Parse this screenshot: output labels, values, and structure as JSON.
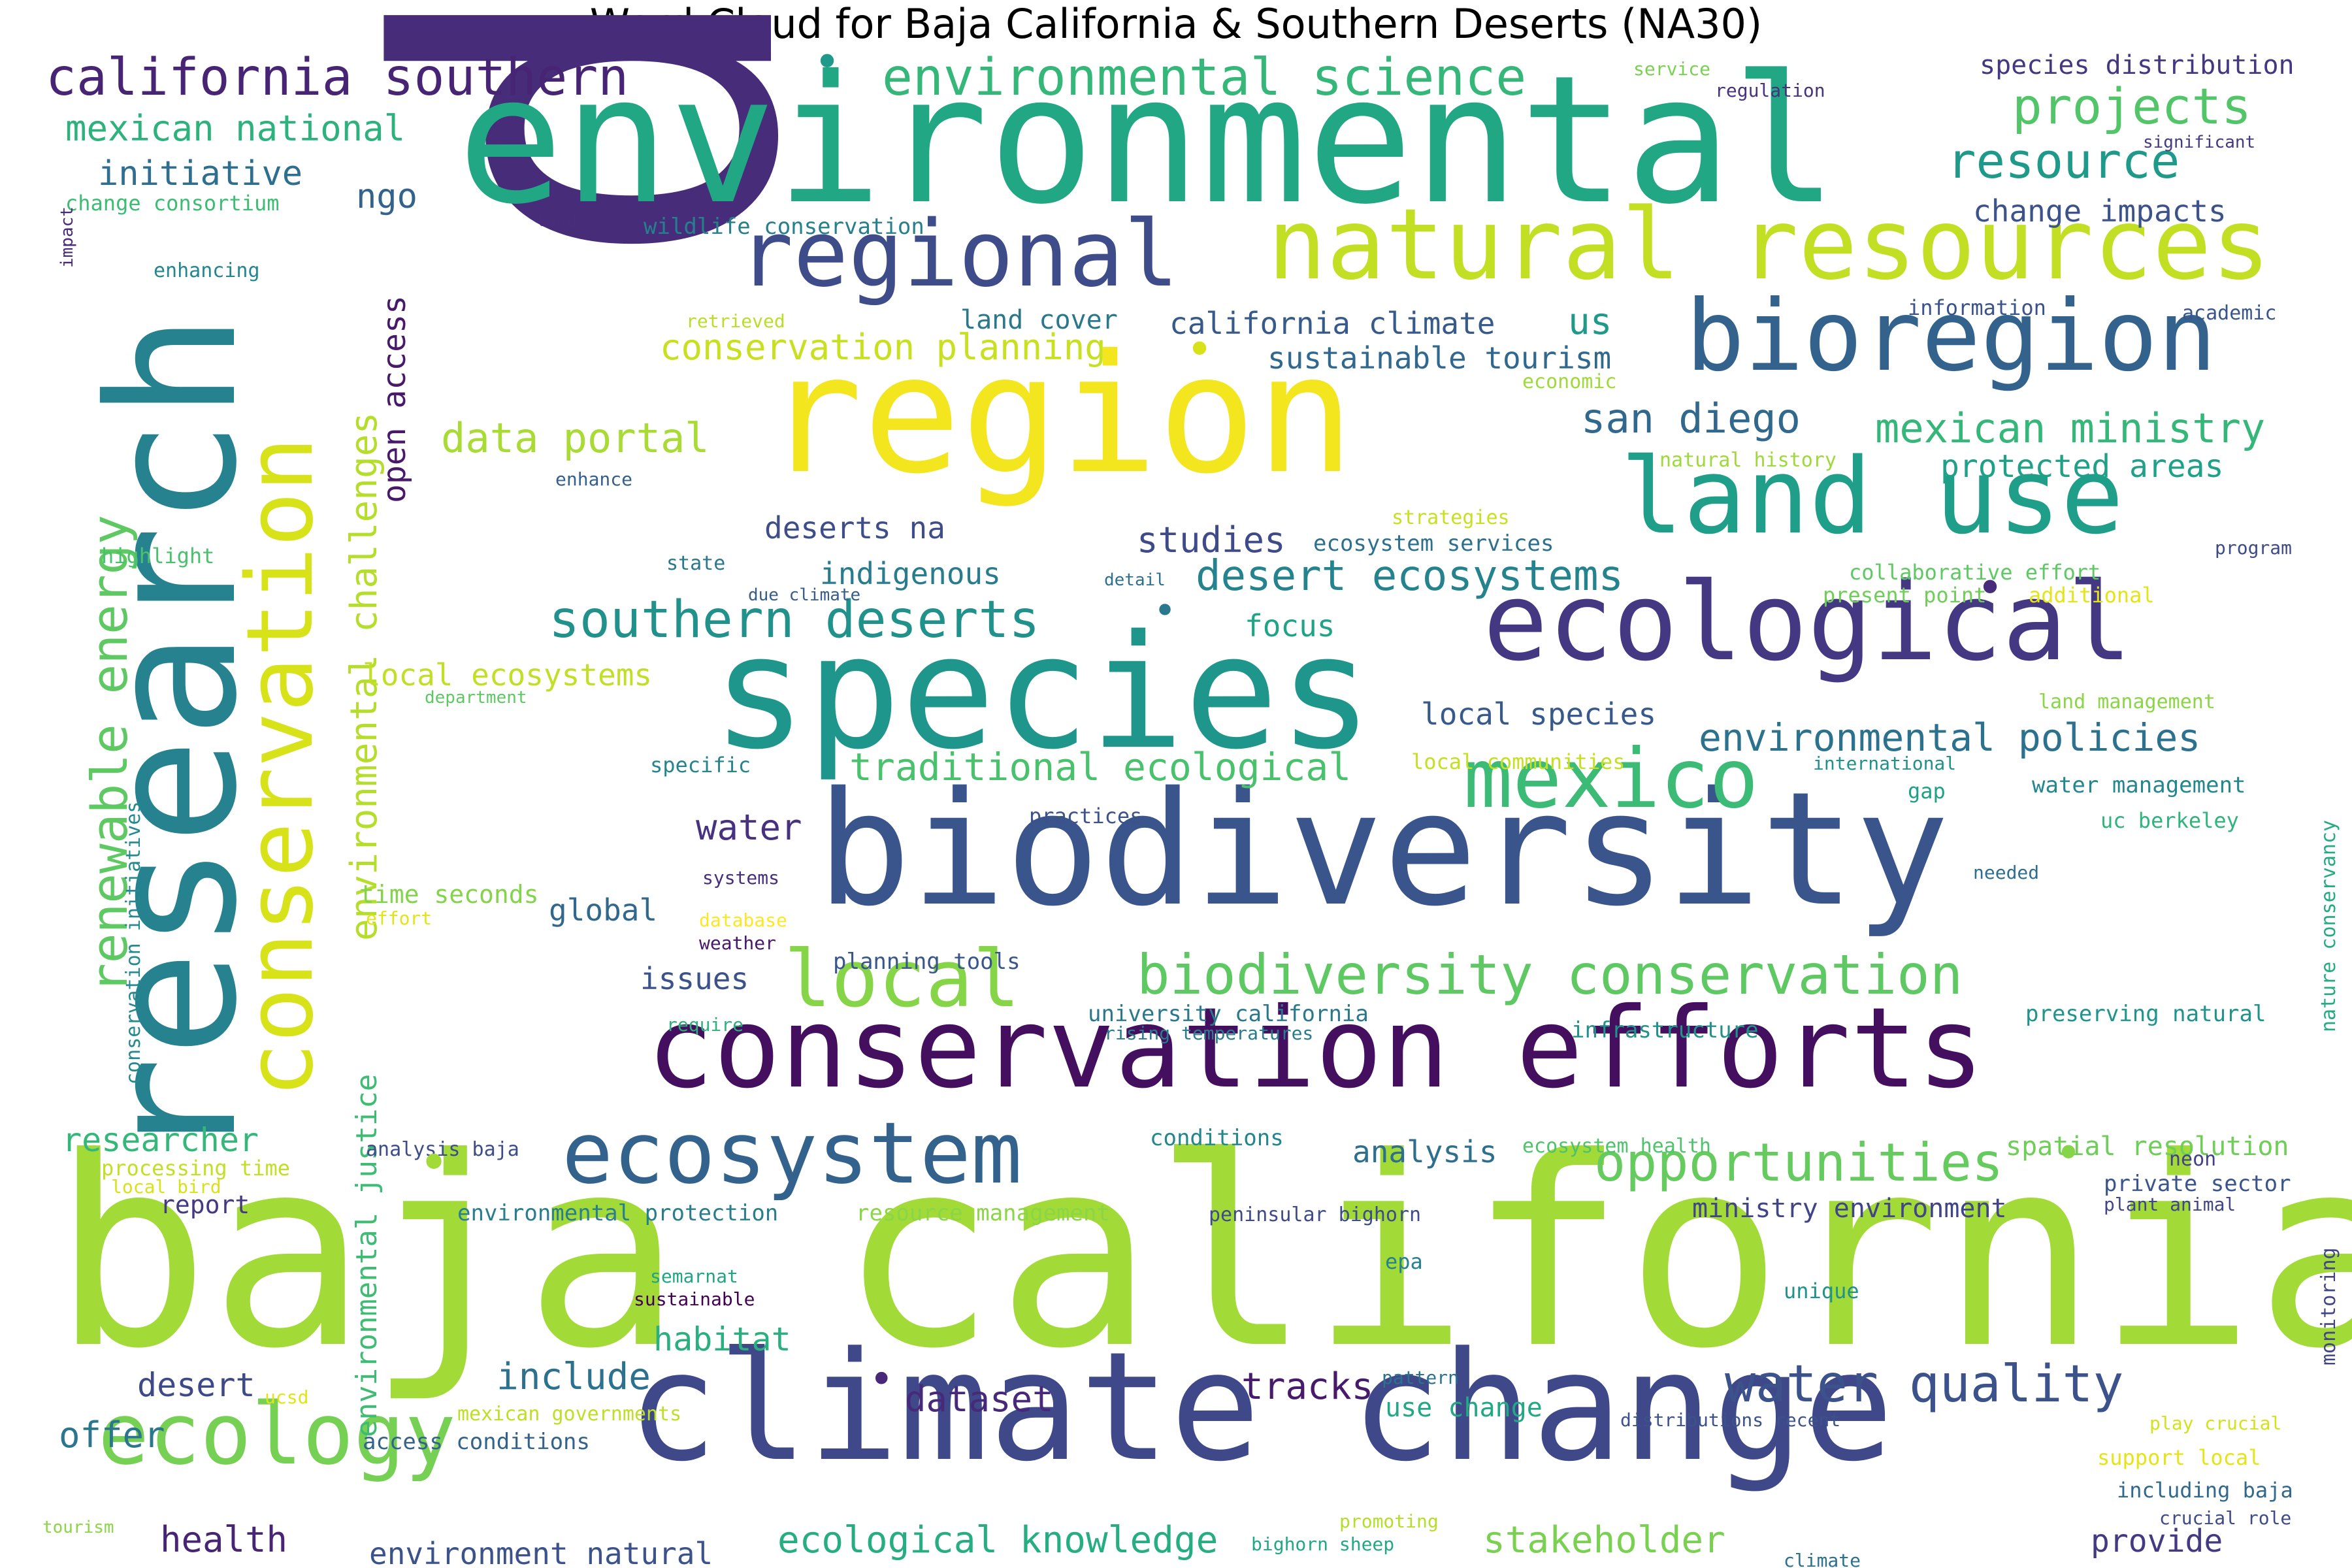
{
  "title": "Word Cloud for Baja California & Southern Deserts (NA30)",
  "words": [
    {
      "text": "data",
      "color": "#472c7a"
    },
    {
      "text": "baja california",
      "color": "#a2da37"
    },
    {
      "text": "environmental",
      "color": "#22a784"
    },
    {
      "text": "region",
      "color": "#f3e51e"
    },
    {
      "text": "species",
      "color": "#1f968b"
    },
    {
      "text": "biodiversity",
      "color": "#3a548c"
    },
    {
      "text": "research",
      "color": "#26828e"
    },
    {
      "text": "climate change",
      "color": "#3f4889"
    },
    {
      "text": "conservation efforts",
      "color": "#440f5e"
    },
    {
      "text": "ecological",
      "color": "#453882"
    },
    {
      "text": "natural resources",
      "color": "#c2df23"
    },
    {
      "text": "bioregion",
      "color": "#33638d"
    },
    {
      "text": "land use",
      "color": "#1f9e89"
    },
    {
      "text": "regional",
      "color": "#3e4c8a"
    },
    {
      "text": "conservation",
      "color": "#d8e219"
    },
    {
      "text": "ecosystem",
      "color": "#33638d"
    },
    {
      "text": "mexico",
      "color": "#3bbb75"
    },
    {
      "text": "ecology",
      "color": "#75d054"
    },
    {
      "text": "local",
      "color": "#86d549"
    },
    {
      "text": "california southern",
      "color": "#482475"
    },
    {
      "text": "environmental science",
      "color": "#35b779"
    },
    {
      "text": "biodiversity conservation",
      "color": "#5ec962"
    },
    {
      "text": "opportunities",
      "color": "#65cb5e"
    },
    {
      "text": "water quality",
      "color": "#3b528b"
    },
    {
      "text": "southern deserts",
      "color": "#21918c"
    },
    {
      "text": "renewable energy",
      "color": "#5ec962"
    },
    {
      "text": "environmental challenges",
      "color": "#b5de2b"
    },
    {
      "text": "projects",
      "color": "#52c569"
    },
    {
      "text": "resource",
      "color": "#1f9a8a"
    },
    {
      "text": "desert ecosystems",
      "color": "#25838e"
    },
    {
      "text": "mexican ministry",
      "color": "#35b779"
    },
    {
      "text": "environmental policies",
      "color": "#2c728e"
    },
    {
      "text": "data portal",
      "color": "#a8db34"
    },
    {
      "text": "san diego",
      "color": "#31688e"
    },
    {
      "text": "traditional ecological",
      "color": "#4ac16d"
    },
    {
      "text": "ecological knowledge",
      "color": "#26ad81"
    },
    {
      "text": "conservation planning",
      "color": "#c8e020"
    },
    {
      "text": "mexican national",
      "color": "#2db27d"
    },
    {
      "text": "environmental justice",
      "color": "#3fbc73"
    },
    {
      "text": "initiative",
      "color": "#2e6e8e"
    },
    {
      "text": "open access",
      "color": "#48186a"
    },
    {
      "text": "studies",
      "color": "#3e4a89"
    },
    {
      "text": "include",
      "color": "#2c718e"
    },
    {
      "text": "stakeholder",
      "color": "#7ad151"
    },
    {
      "text": "dataset",
      "color": "#482878"
    },
    {
      "text": "tracks",
      "color": "#481a6c"
    },
    {
      "text": "sustainable tourism",
      "color": "#31688e"
    },
    {
      "text": "protected areas",
      "color": "#1fa088"
    },
    {
      "text": "change impacts",
      "color": "#3b528b"
    },
    {
      "text": "species distribution",
      "color": "#453781"
    },
    {
      "text": "california climate",
      "color": "#375a8c"
    },
    {
      "text": "land cover",
      "color": "#2a788e"
    },
    {
      "text": "water",
      "color": "#46327e"
    },
    {
      "text": "habitat",
      "color": "#2ab07f"
    },
    {
      "text": "offer",
      "color": "#2a768e"
    },
    {
      "text": "health",
      "color": "#482475"
    },
    {
      "text": "environment natural",
      "color": "#3b528b"
    },
    {
      "text": "provide",
      "color": "#443a83"
    },
    {
      "text": "researcher",
      "color": "#35b779"
    },
    {
      "text": "local ecosystems",
      "color": "#c0df25"
    },
    {
      "text": "local species",
      "color": "#38598c"
    },
    {
      "text": "indigenous",
      "color": "#287c8e"
    },
    {
      "text": "deserts na",
      "color": "#3d4e8a"
    },
    {
      "text": "focus",
      "color": "#20a386"
    },
    {
      "text": "global",
      "color": "#31688e"
    },
    {
      "text": "issues",
      "color": "#3b528b"
    },
    {
      "text": "desert",
      "color": "#3e4989"
    },
    {
      "text": "analysis",
      "color": "#2e6f8e"
    },
    {
      "text": "ministry environment",
      "color": "#414487"
    },
    {
      "text": "use change",
      "color": "#22a884"
    },
    {
      "text": "ngo",
      "color": "#33628d"
    },
    {
      "text": "us",
      "color": "#1f998a"
    },
    {
      "text": "wildlife conservation",
      "color": "#277f8e"
    },
    {
      "text": "spatial resolution",
      "color": "#6ece58"
    },
    {
      "text": "report",
      "color": "#443983"
    },
    {
      "text": "ecosystem services",
      "color": "#2d708e"
    },
    {
      "text": "time seconds",
      "color": "#84d44b"
    },
    {
      "text": "conservation initiatives",
      "color": "#23898e"
    },
    {
      "text": "water management",
      "color": "#24868e"
    },
    {
      "text": "nature conservancy",
      "color": "#25ab82"
    },
    {
      "text": "monitoring",
      "color": "#414487"
    },
    {
      "text": "university california",
      "color": "#2a788e"
    },
    {
      "text": "planning tools",
      "color": "#39568c"
    },
    {
      "text": "infrastructure",
      "color": "#21918c"
    },
    {
      "text": "preserving natural",
      "color": "#1f948c"
    },
    {
      "text": "environmental protection",
      "color": "#287d8e"
    },
    {
      "text": "resource management",
      "color": "#8bd646"
    },
    {
      "text": "peninsular bighorn",
      "color": "#3e4a89"
    },
    {
      "text": "access conditions",
      "color": "#33638d"
    },
    {
      "text": "mexican governments",
      "color": "#bddf26"
    },
    {
      "text": "analysis baja",
      "color": "#3d4d8a"
    },
    {
      "text": "processing time",
      "color": "#c2df23"
    },
    {
      "text": "conditions",
      "color": "#25858e"
    },
    {
      "text": "ecosystem health",
      "color": "#4ec36b"
    },
    {
      "text": "private sector",
      "color": "#39558c"
    },
    {
      "text": "plant animal",
      "color": "#404688"
    },
    {
      "text": "neon",
      "color": "#424086"
    },
    {
      "text": "local communities",
      "color": "#c5e021"
    },
    {
      "text": "collaborative effort",
      "color": "#5ec962"
    },
    {
      "text": "present point",
      "color": "#6ece58"
    },
    {
      "text": "additional",
      "color": "#e5e419"
    },
    {
      "text": "land management",
      "color": "#8bd646"
    },
    {
      "text": "uc berkeley",
      "color": "#2fb47c"
    },
    {
      "text": "information",
      "color": "#3b528b"
    },
    {
      "text": "academic",
      "color": "#39568c"
    },
    {
      "text": "regulation",
      "color": "#46327e"
    },
    {
      "text": "significant",
      "color": "#443a83"
    },
    {
      "text": "service",
      "color": "#7ad151"
    },
    {
      "text": "change consortium",
      "color": "#3dbc74"
    },
    {
      "text": "enhancing",
      "color": "#24868e"
    },
    {
      "text": "land",
      "color": "#472d7b"
    },
    {
      "text": "impact",
      "color": "#482878"
    },
    {
      "text": "retrieved",
      "color": "#b8de29"
    },
    {
      "text": "economic",
      "color": "#9fda3a"
    },
    {
      "text": "natural history",
      "color": "#9dd93b"
    },
    {
      "text": "strategies",
      "color": "#c8e020"
    },
    {
      "text": "enhance",
      "color": "#34608d"
    },
    {
      "text": "highlight",
      "color": "#4ac16d"
    },
    {
      "text": "state",
      "color": "#2a778e"
    },
    {
      "text": "detail",
      "color": "#2d718e"
    },
    {
      "text": "due climate",
      "color": "#365d8d"
    },
    {
      "text": "department",
      "color": "#5ec962"
    },
    {
      "text": "specific",
      "color": "#25858e"
    },
    {
      "text": "international",
      "color": "#21918c"
    },
    {
      "text": "gap",
      "color": "#1fa187"
    },
    {
      "text": "practices",
      "color": "#3b528b"
    },
    {
      "text": "systems",
      "color": "#472f7d"
    },
    {
      "text": "effort",
      "color": "#e2e418"
    },
    {
      "text": "database",
      "color": "#fde725"
    },
    {
      "text": "weather",
      "color": "#48186a"
    },
    {
      "text": "needed",
      "color": "#2e6e8e"
    },
    {
      "text": "require",
      "color": "#2db27d"
    },
    {
      "text": "rising temperatures",
      "color": "#287c8e"
    },
    {
      "text": "local bird",
      "color": "#d8e219"
    },
    {
      "text": "semarnat",
      "color": "#21a585"
    },
    {
      "text": "sustainable",
      "color": "#440154"
    },
    {
      "text": "epa",
      "color": "#26828e"
    },
    {
      "text": "unique",
      "color": "#20928c"
    },
    {
      "text": "pattern",
      "color": "#2c728e"
    },
    {
      "text": "distributions recent",
      "color": "#3b528b"
    },
    {
      "text": "play crucial",
      "color": "#d2e21b"
    },
    {
      "text": "support local",
      "color": "#e5e419"
    },
    {
      "text": "including baja",
      "color": "#31688e"
    },
    {
      "text": "crucial role",
      "color": "#3e4a89"
    },
    {
      "text": "ucsd",
      "color": "#e2e418"
    },
    {
      "text": "tourism",
      "color": "#8bd646"
    },
    {
      "text": "promoting",
      "color": "#b5de2b"
    },
    {
      "text": "bighorn sheep",
      "color": "#22a884"
    },
    {
      "text": "climate",
      "color": "#2c718e"
    },
    {
      "text": "program",
      "color": "#3e4a89"
    },
    {
      "text": "•",
      "color": "#2a788e"
    },
    {
      "text": "•",
      "color": "#d8e219"
    },
    {
      "text": "•",
      "color": "#1f998a"
    },
    {
      "text": "•",
      "color": "#472c7a"
    },
    {
      "text": "•",
      "color": "#86d549"
    },
    {
      "text": "•",
      "color": "#482878"
    },
    {
      "text": "•",
      "color": "#a2da37"
    }
  ]
}
